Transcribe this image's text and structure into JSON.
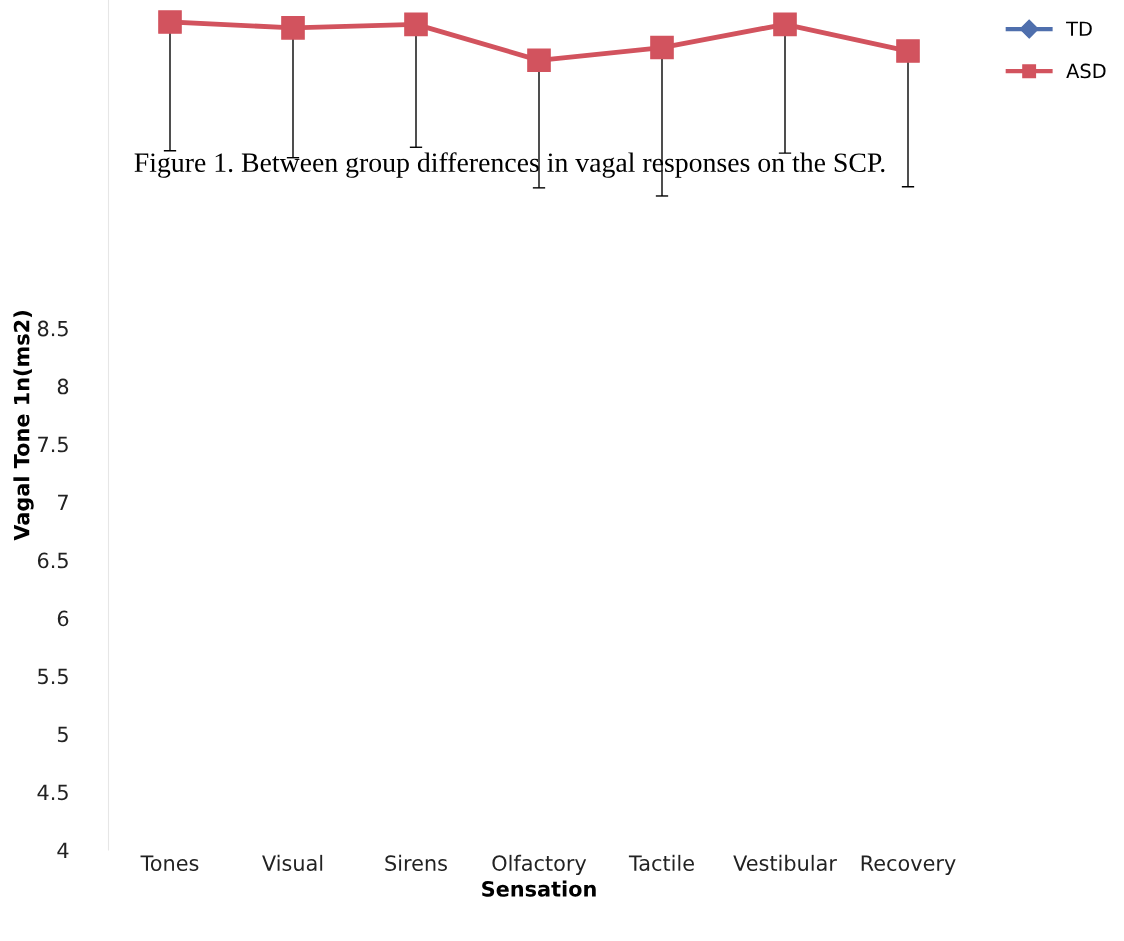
{
  "chart_data": {
    "type": "line",
    "xlabel": "Sensation",
    "ylabel": "Vagal Tone 1n(ms2)",
    "categories": [
      "Tones",
      "Visual",
      "Sirens",
      "Olfactory",
      "Tactile",
      "Vestibular",
      "Recovery"
    ],
    "series": [
      {
        "name": "TD",
        "color": "#4f6fad",
        "marker": "diamond",
        "values": [
          null,
          null,
          null,
          null,
          null,
          null,
          null
        ]
      },
      {
        "name": "ASD",
        "color": "#d2535e",
        "marker": "square",
        "values": [
          11.14,
          11.09,
          11.12,
          10.81,
          10.92,
          11.12,
          10.89
        ],
        "errors": [
          [
            10.03,
            11.14
          ],
          [
            9.97,
            11.09
          ],
          [
            10.06,
            11.12
          ],
          [
            9.71,
            10.81
          ],
          [
            9.64,
            10.92
          ],
          [
            10.01,
            11.12
          ],
          [
            9.72,
            10.89
          ]
        ]
      }
    ],
    "ylim": [
      4,
      11.33
    ],
    "yticks": [
      4,
      4.5,
      5,
      5.5,
      6,
      6.5,
      7,
      7.5,
      8,
      8.5
    ],
    "grid": false,
    "legend": "top right",
    "annotations": [
      "Figure 1. Between group differences in vagal responses on the SCP."
    ]
  }
}
